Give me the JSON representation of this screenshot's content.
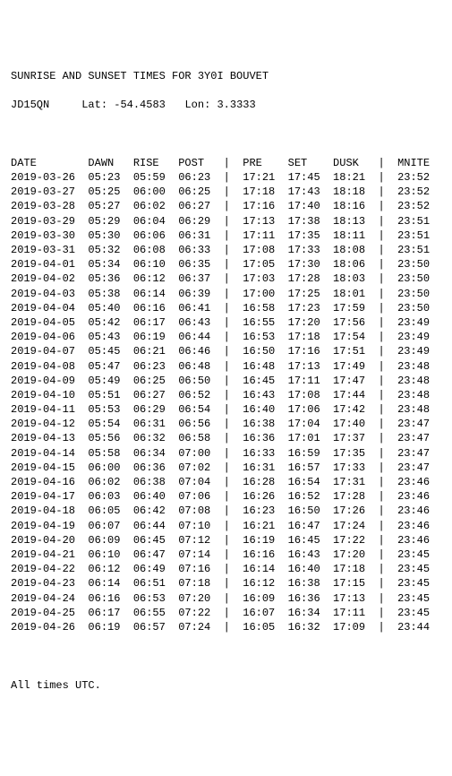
{
  "header": {
    "title": "SUNRISE AND SUNSET TIMES FOR 3Y0I BOUVET",
    "callsign": "JD15QN",
    "lat_label": "Lat:",
    "lat_value": "-54.4583",
    "lon_label": "Lon:",
    "lon_value": "3.3333"
  },
  "columns": {
    "date": "DATE",
    "dawn": "DAWN",
    "rise": "RISE",
    "post": "POST",
    "pre": "PRE",
    "set": "SET",
    "dusk": "DUSK",
    "mnite": "MNITE"
  },
  "rows": [
    {
      "date": "2019-03-26",
      "dawn": "05:23",
      "rise": "05:59",
      "post": "06:23",
      "pre": "17:21",
      "set": "17:45",
      "dusk": "18:21",
      "mnite": "23:52"
    },
    {
      "date": "2019-03-27",
      "dawn": "05:25",
      "rise": "06:00",
      "post": "06:25",
      "pre": "17:18",
      "set": "17:43",
      "dusk": "18:18",
      "mnite": "23:52"
    },
    {
      "date": "2019-03-28",
      "dawn": "05:27",
      "rise": "06:02",
      "post": "06:27",
      "pre": "17:16",
      "set": "17:40",
      "dusk": "18:16",
      "mnite": "23:52"
    },
    {
      "date": "2019-03-29",
      "dawn": "05:29",
      "rise": "06:04",
      "post": "06:29",
      "pre": "17:13",
      "set": "17:38",
      "dusk": "18:13",
      "mnite": "23:51"
    },
    {
      "date": "2019-03-30",
      "dawn": "05:30",
      "rise": "06:06",
      "post": "06:31",
      "pre": "17:11",
      "set": "17:35",
      "dusk": "18:11",
      "mnite": "23:51"
    },
    {
      "date": "2019-03-31",
      "dawn": "05:32",
      "rise": "06:08",
      "post": "06:33",
      "pre": "17:08",
      "set": "17:33",
      "dusk": "18:08",
      "mnite": "23:51"
    },
    {
      "date": "2019-04-01",
      "dawn": "05:34",
      "rise": "06:10",
      "post": "06:35",
      "pre": "17:05",
      "set": "17:30",
      "dusk": "18:06",
      "mnite": "23:50"
    },
    {
      "date": "2019-04-02",
      "dawn": "05:36",
      "rise": "06:12",
      "post": "06:37",
      "pre": "17:03",
      "set": "17:28",
      "dusk": "18:03",
      "mnite": "23:50"
    },
    {
      "date": "2019-04-03",
      "dawn": "05:38",
      "rise": "06:14",
      "post": "06:39",
      "pre": "17:00",
      "set": "17:25",
      "dusk": "18:01",
      "mnite": "23:50"
    },
    {
      "date": "2019-04-04",
      "dawn": "05:40",
      "rise": "06:16",
      "post": "06:41",
      "pre": "16:58",
      "set": "17:23",
      "dusk": "17:59",
      "mnite": "23:50"
    },
    {
      "date": "2019-04-05",
      "dawn": "05:42",
      "rise": "06:17",
      "post": "06:43",
      "pre": "16:55",
      "set": "17:20",
      "dusk": "17:56",
      "mnite": "23:49"
    },
    {
      "date": "2019-04-06",
      "dawn": "05:43",
      "rise": "06:19",
      "post": "06:44",
      "pre": "16:53",
      "set": "17:18",
      "dusk": "17:54",
      "mnite": "23:49"
    },
    {
      "date": "2019-04-07",
      "dawn": "05:45",
      "rise": "06:21",
      "post": "06:46",
      "pre": "16:50",
      "set": "17:16",
      "dusk": "17:51",
      "mnite": "23:49"
    },
    {
      "date": "2019-04-08",
      "dawn": "05:47",
      "rise": "06:23",
      "post": "06:48",
      "pre": "16:48",
      "set": "17:13",
      "dusk": "17:49",
      "mnite": "23:48"
    },
    {
      "date": "2019-04-09",
      "dawn": "05:49",
      "rise": "06:25",
      "post": "06:50",
      "pre": "16:45",
      "set": "17:11",
      "dusk": "17:47",
      "mnite": "23:48"
    },
    {
      "date": "2019-04-10",
      "dawn": "05:51",
      "rise": "06:27",
      "post": "06:52",
      "pre": "16:43",
      "set": "17:08",
      "dusk": "17:44",
      "mnite": "23:48"
    },
    {
      "date": "2019-04-11",
      "dawn": "05:53",
      "rise": "06:29",
      "post": "06:54",
      "pre": "16:40",
      "set": "17:06",
      "dusk": "17:42",
      "mnite": "23:48"
    },
    {
      "date": "2019-04-12",
      "dawn": "05:54",
      "rise": "06:31",
      "post": "06:56",
      "pre": "16:38",
      "set": "17:04",
      "dusk": "17:40",
      "mnite": "23:47"
    },
    {
      "date": "2019-04-13",
      "dawn": "05:56",
      "rise": "06:32",
      "post": "06:58",
      "pre": "16:36",
      "set": "17:01",
      "dusk": "17:37",
      "mnite": "23:47"
    },
    {
      "date": "2019-04-14",
      "dawn": "05:58",
      "rise": "06:34",
      "post": "07:00",
      "pre": "16:33",
      "set": "16:59",
      "dusk": "17:35",
      "mnite": "23:47"
    },
    {
      "date": "2019-04-15",
      "dawn": "06:00",
      "rise": "06:36",
      "post": "07:02",
      "pre": "16:31",
      "set": "16:57",
      "dusk": "17:33",
      "mnite": "23:47"
    },
    {
      "date": "2019-04-16",
      "dawn": "06:02",
      "rise": "06:38",
      "post": "07:04",
      "pre": "16:28",
      "set": "16:54",
      "dusk": "17:31",
      "mnite": "23:46"
    },
    {
      "date": "2019-04-17",
      "dawn": "06:03",
      "rise": "06:40",
      "post": "07:06",
      "pre": "16:26",
      "set": "16:52",
      "dusk": "17:28",
      "mnite": "23:46"
    },
    {
      "date": "2019-04-18",
      "dawn": "06:05",
      "rise": "06:42",
      "post": "07:08",
      "pre": "16:23",
      "set": "16:50",
      "dusk": "17:26",
      "mnite": "23:46"
    },
    {
      "date": "2019-04-19",
      "dawn": "06:07",
      "rise": "06:44",
      "post": "07:10",
      "pre": "16:21",
      "set": "16:47",
      "dusk": "17:24",
      "mnite": "23:46"
    },
    {
      "date": "2019-04-20",
      "dawn": "06:09",
      "rise": "06:45",
      "post": "07:12",
      "pre": "16:19",
      "set": "16:45",
      "dusk": "17:22",
      "mnite": "23:46"
    },
    {
      "date": "2019-04-21",
      "dawn": "06:10",
      "rise": "06:47",
      "post": "07:14",
      "pre": "16:16",
      "set": "16:43",
      "dusk": "17:20",
      "mnite": "23:45"
    },
    {
      "date": "2019-04-22",
      "dawn": "06:12",
      "rise": "06:49",
      "post": "07:16",
      "pre": "16:14",
      "set": "16:40",
      "dusk": "17:18",
      "mnite": "23:45"
    },
    {
      "date": "2019-04-23",
      "dawn": "06:14",
      "rise": "06:51",
      "post": "07:18",
      "pre": "16:12",
      "set": "16:38",
      "dusk": "17:15",
      "mnite": "23:45"
    },
    {
      "date": "2019-04-24",
      "dawn": "06:16",
      "rise": "06:53",
      "post": "07:20",
      "pre": "16:09",
      "set": "16:36",
      "dusk": "17:13",
      "mnite": "23:45"
    },
    {
      "date": "2019-04-25",
      "dawn": "06:17",
      "rise": "06:55",
      "post": "07:22",
      "pre": "16:07",
      "set": "16:34",
      "dusk": "17:11",
      "mnite": "23:45"
    },
    {
      "date": "2019-04-26",
      "dawn": "06:19",
      "rise": "06:57",
      "post": "07:24",
      "pre": "16:05",
      "set": "16:32",
      "dusk": "17:09",
      "mnite": "23:44"
    }
  ],
  "footer": "All times UTC."
}
